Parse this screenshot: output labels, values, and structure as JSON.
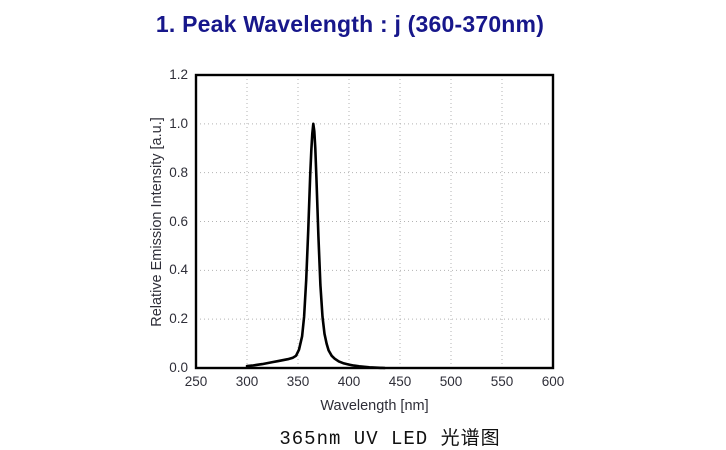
{
  "header": {
    "title": "1. Peak Wavelength : j (360-370nm)",
    "title_color": "#17178b"
  },
  "chart_data": {
    "type": "line",
    "title": "",
    "xlabel": "Wavelength [nm]",
    "ylabel": "Relative Emission Intensity [a.u.]",
    "xlim": [
      250,
      600
    ],
    "ylim": [
      0,
      1.2
    ],
    "xtick_labels": [
      "250",
      "300",
      "350",
      "400",
      "450",
      "500",
      "550",
      "600"
    ],
    "ytick_labels": [
      "0.0",
      "0.2",
      "0.4",
      "0.6",
      "0.8",
      "1.0",
      "1.2"
    ],
    "grid": true,
    "grid_style": "dotted",
    "grid_color": "#b3b3b3",
    "legend_position": "none",
    "line_color": "#000000",
    "series": [
      {
        "name": "365nm UV LED emission spectrum",
        "x": [
          300,
          305,
          310,
          315,
          320,
          325,
          330,
          335,
          340,
          345,
          348,
          351,
          354,
          356,
          358,
          360,
          362,
          363,
          364,
          365,
          366,
          367,
          368,
          370,
          372,
          374,
          376,
          378,
          380,
          383,
          386,
          390,
          395,
          400,
          405,
          410,
          415,
          420,
          425,
          430,
          435
        ],
        "y": [
          0.008,
          0.01,
          0.013,
          0.016,
          0.02,
          0.024,
          0.028,
          0.032,
          0.036,
          0.042,
          0.05,
          0.075,
          0.13,
          0.21,
          0.36,
          0.56,
          0.79,
          0.89,
          0.96,
          1.0,
          0.97,
          0.9,
          0.78,
          0.54,
          0.34,
          0.21,
          0.14,
          0.1,
          0.072,
          0.05,
          0.038,
          0.027,
          0.019,
          0.014,
          0.01,
          0.007,
          0.005,
          0.003,
          0.002,
          0.001,
          0.0
        ]
      }
    ]
  },
  "footer": {
    "caption": "365nm UV LED 光谱图"
  }
}
